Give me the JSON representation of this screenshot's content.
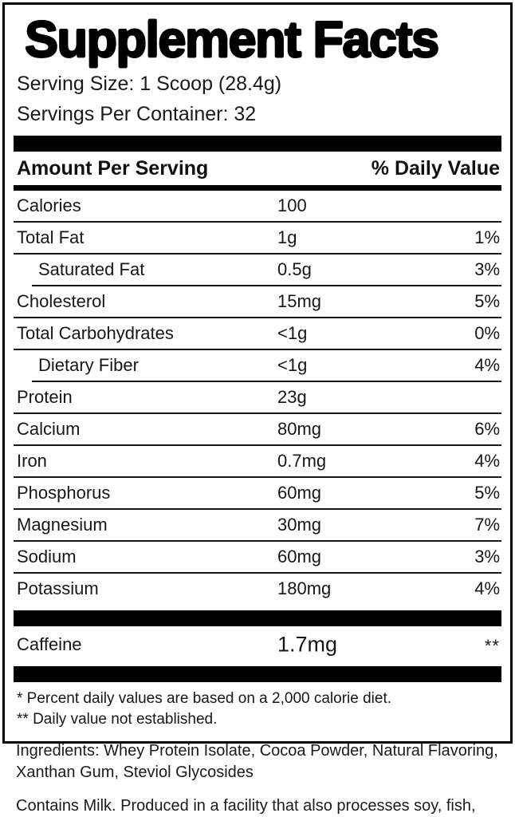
{
  "facts": {
    "title": "Supplement Facts",
    "serving_size": "Serving Size: 1 Scoop (28.4g)",
    "servings_per_container": "Servings Per Container: 32",
    "header": {
      "amount_per_serving": "Amount Per Serving",
      "daily_value": "% Daily Value"
    },
    "rows": [
      {
        "name": "Calories",
        "amount": "100",
        "dv": ""
      },
      {
        "name": "Total Fat",
        "amount": "1g",
        "dv": "1%"
      },
      {
        "name": "Saturated Fat",
        "amount": "0.5g",
        "dv": "3%"
      },
      {
        "name": "Cholesterol",
        "amount": "15mg",
        "dv": "5%"
      },
      {
        "name": "Total Carbohydrates",
        "amount": "<1g",
        "dv": "0%"
      },
      {
        "name": "Dietary Fiber",
        "amount": "<1g",
        "dv": "4%"
      },
      {
        "name": "Protein",
        "amount": "23g",
        "dv": ""
      },
      {
        "name": "Calcium",
        "amount": "80mg",
        "dv": "6%"
      },
      {
        "name": "Iron",
        "amount": "0.7mg",
        "dv": "4%"
      },
      {
        "name": "Phosphorus",
        "amount": "60mg",
        "dv": "5%"
      },
      {
        "name": "Magnesium",
        "amount": "30mg",
        "dv": "7%"
      },
      {
        "name": "Sodium",
        "amount": "60mg",
        "dv": "3%"
      },
      {
        "name": "Potassium",
        "amount": "180mg",
        "dv": "4%"
      }
    ],
    "caffeine": {
      "name": "Caffeine",
      "amount": "1.7mg",
      "dv": "**"
    },
    "footnotes": {
      "line1": "* Percent daily values are based on a 2,000 calorie diet.",
      "line2": "** Daily value not established."
    },
    "colors": {
      "ink": "#000000",
      "background": "#ffffff"
    }
  },
  "ingredients_text": "Ingredients: Whey Protein Isolate, Cocoa Powder, Natural Flavoring, Xanthan Gum, Steviol Glycosides",
  "allergen_text": "Contains Milk. Produced in a facility that also processes soy, fish, shellfish, milk, peanuts, tree nuts, wheat, and eggs."
}
